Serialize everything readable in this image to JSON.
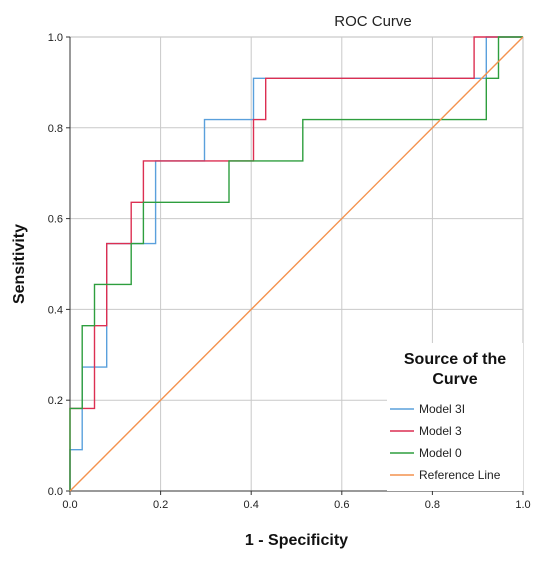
{
  "chart_data": {
    "type": "line",
    "title": "ROC Curve",
    "xlabel": "1 - Specificity",
    "ylabel": "Sensitivity",
    "xlim": [
      0,
      1
    ],
    "ylim": [
      0,
      1
    ],
    "xticks": [
      "0.0",
      "0.2",
      "0.4",
      "0.6",
      "0.8",
      "1.0"
    ],
    "yticks": [
      "0.0",
      "0.2",
      "0.4",
      "0.6",
      "0.8",
      "1.0"
    ],
    "grid": true,
    "legend": {
      "title_lines": [
        "Source of the",
        "Curve"
      ],
      "placement": "bottom-right"
    },
    "series": [
      {
        "name": "Model 3I",
        "color": "#5aa0dc",
        "x": [
          0,
          0,
          0.027,
          0.027,
          0.081,
          0.081,
          0.162,
          0.162,
          0.189,
          0.189,
          0.297,
          0.297,
          0.405,
          0.405,
          0.919,
          0.919,
          1.0
        ],
        "y": [
          0,
          0.091,
          0.091,
          0.273,
          0.273,
          0.545,
          0.545,
          0.545,
          0.545,
          0.727,
          0.727,
          0.818,
          0.818,
          0.909,
          0.909,
          1.0,
          1.0
        ]
      },
      {
        "name": "Model 3",
        "color": "#dc2f52",
        "x": [
          0,
          0,
          0.054,
          0.054,
          0.081,
          0.081,
          0.135,
          0.135,
          0.162,
          0.162,
          0.405,
          0.405,
          0.432,
          0.432,
          0.892,
          0.892,
          1.0
        ],
        "y": [
          0,
          0.182,
          0.182,
          0.364,
          0.364,
          0.545,
          0.545,
          0.636,
          0.636,
          0.727,
          0.727,
          0.818,
          0.818,
          0.909,
          0.909,
          1.0,
          1.0
        ]
      },
      {
        "name": "Model 0",
        "color": "#2e9e3e",
        "x": [
          0,
          0,
          0.027,
          0.027,
          0.054,
          0.054,
          0.135,
          0.135,
          0.162,
          0.162,
          0.351,
          0.351,
          0.514,
          0.514,
          0.919,
          0.919,
          0.946,
          0.946,
          1.0
        ],
        "y": [
          0,
          0.182,
          0.182,
          0.364,
          0.364,
          0.455,
          0.455,
          0.545,
          0.545,
          0.636,
          0.636,
          0.727,
          0.727,
          0.818,
          0.818,
          0.909,
          0.909,
          1.0,
          1.0
        ]
      },
      {
        "name": "Reference Line",
        "color": "#f4924e",
        "x": [
          0,
          1
        ],
        "y": [
          0,
          1
        ]
      }
    ]
  }
}
